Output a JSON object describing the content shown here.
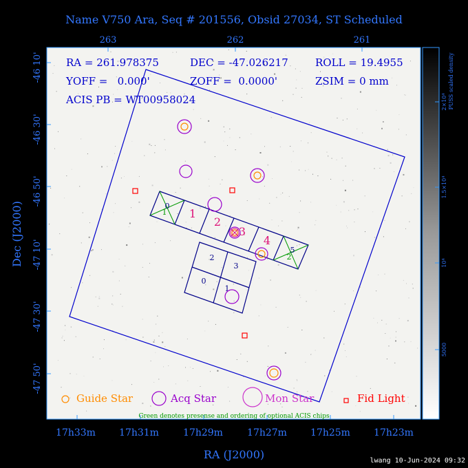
{
  "title": "Name V750 Ara, Seq # 201556, Obsid 27034, ST Scheduled",
  "axes": {
    "xlabel": "RA (J2000)",
    "ylabel": "Dec (J2000)",
    "ra_bottom_ticks": [
      "17h33m",
      "17h31m",
      "17h29m",
      "17h27m",
      "17h25m",
      "17h23m"
    ],
    "ra_top_ticks": [
      "263",
      "262",
      "261"
    ],
    "dec_ticks": [
      "-46 10'",
      "-46 30'",
      "-46 50'",
      "-47 10'",
      "-47 30'",
      "-47 50'"
    ]
  },
  "colorbar": {
    "label": "PUSS scaled density",
    "ticks": [
      "2×10⁴",
      "1.5×10⁴",
      "10⁴",
      "5000"
    ]
  },
  "info": {
    "ra": "RA = 261.978375",
    "dec": "DEC = -47.026217",
    "roll": "ROLL = 19.4955",
    "yoff": "YOFF =   0.000'",
    "zoff": "ZOFF =  0.0000'",
    "zsim": "ZSIM = 0 mm",
    "acis_pb": "ACIS PB = WT00958024"
  },
  "acis_s_chip_labels": [
    "0",
    "1",
    "2",
    "3",
    "4",
    "5"
  ],
  "acis_i_chip_labels": [
    "2",
    "3",
    "0",
    "1"
  ],
  "legend": {
    "guide": "Guide Star",
    "acq": "Acq Star",
    "mon": "Mon Star",
    "fid": "Fid Light"
  },
  "note": "Green denotes presense and ordering of optional ACIS chips",
  "footer": "lwang 10-Jun-2024 09:32",
  "colors": {
    "blue": "#1f5fff",
    "navy": "#00008b",
    "magenta": "#cc33cc",
    "acq": "#9900cc",
    "guide": "#ff8c00",
    "fid": "#ff0000",
    "optional": "#009900",
    "chip_label_s": "#dd1177",
    "chip_label_i": "#000088"
  }
}
